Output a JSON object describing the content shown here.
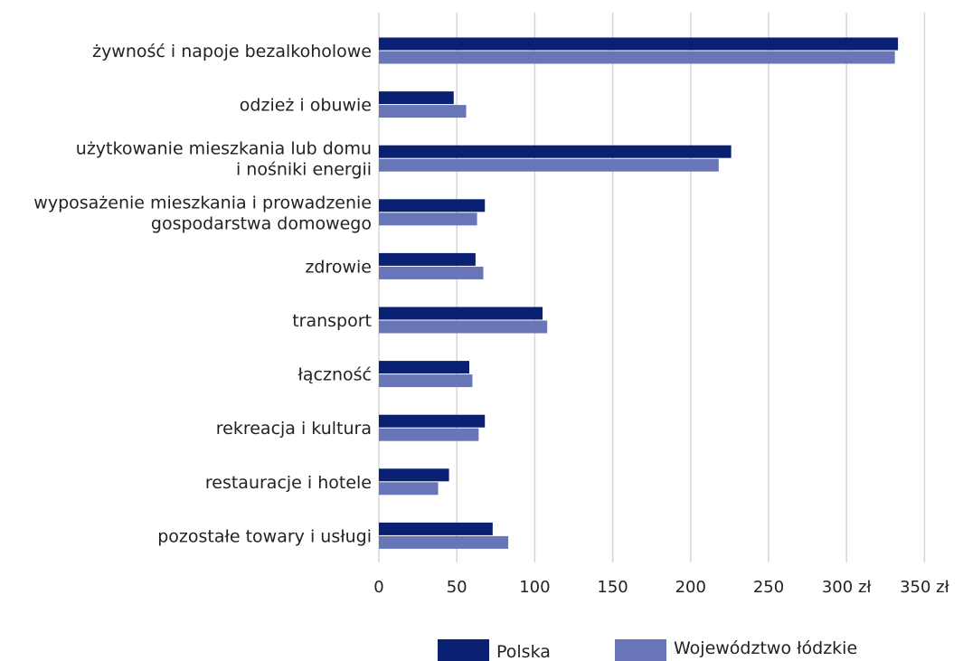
{
  "chart_data": {
    "type": "bar",
    "orientation": "horizontal",
    "categories": [
      [
        "żywność i napoje bezalkoholowe"
      ],
      [
        "odzież i obuwie"
      ],
      [
        "użytkowanie mieszkania lub domu",
        "i nośniki energii"
      ],
      [
        "wyposażenie mieszkania i prowadzenie",
        "gospodarstwa domowego"
      ],
      [
        "zdrowie"
      ],
      [
        "transport"
      ],
      [
        "łączność"
      ],
      [
        "rekreacja i kultura"
      ],
      [
        "restauracje i hotele"
      ],
      [
        "pozostałe towary i usługi"
      ]
    ],
    "series": [
      {
        "name": "Polska",
        "color": "#0a2173",
        "values": [
          333,
          48,
          226,
          68,
          62,
          105,
          58,
          68,
          45,
          73
        ]
      },
      {
        "name": "Województwo łódzkie",
        "color": "#6876b8",
        "values": [
          331,
          56,
          218,
          63,
          67,
          108,
          60,
          64,
          38,
          83
        ]
      }
    ],
    "xlim": [
      0,
      350
    ],
    "ticks": [
      0,
      50,
      100,
      150,
      200,
      250,
      300,
      350
    ],
    "tick_labels": [
      "0",
      "50",
      "100",
      "150",
      "200",
      "250",
      "300 zł",
      "350 zł"
    ],
    "grid": "vertical",
    "legend": "bottom",
    "title": "",
    "xlabel": "",
    "ylabel": ""
  }
}
